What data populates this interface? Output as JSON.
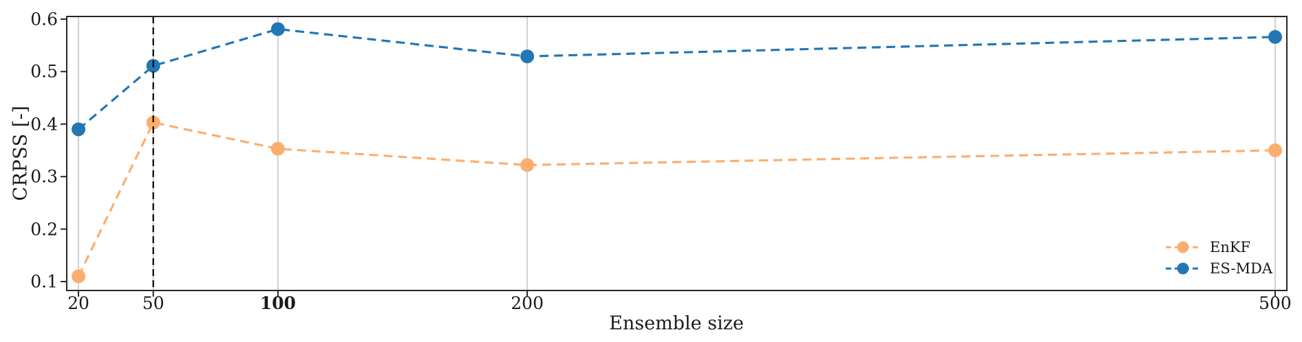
{
  "figure": {
    "background": "#ffffff"
  },
  "chart_data": {
    "type": "line",
    "title": "",
    "xlabel": "Ensemble size",
    "ylabel": "CRPSS [-]",
    "x": [
      20,
      50,
      100,
      200,
      500
    ],
    "xticks": [
      {
        "label": "20",
        "bold": false
      },
      {
        "label": "50",
        "bold": false
      },
      {
        "label": "100",
        "bold": true
      },
      {
        "label": "200",
        "bold": false
      },
      {
        "label": "500",
        "bold": false
      }
    ],
    "yticks": [
      {
        "value": 0.1,
        "label": "0.1"
      },
      {
        "value": 0.2,
        "label": "0.2"
      },
      {
        "value": 0.3,
        "label": "0.3"
      },
      {
        "value": 0.4,
        "label": "0.4"
      },
      {
        "value": 0.5,
        "label": "0.5"
      },
      {
        "value": 0.6,
        "label": "0.6"
      }
    ],
    "xlim": [
      15.3,
      504.7
    ],
    "ylim": [
      0.083,
      0.605
    ],
    "grid": {
      "axis": "x",
      "on": true
    },
    "vline": {
      "x": 50,
      "style": "dashed"
    },
    "series": [
      {
        "name": "EnKF",
        "values": [
          0.11,
          0.403,
          0.353,
          0.322,
          0.35
        ],
        "linestyle": "dashed",
        "marker": "circle"
      },
      {
        "name": "ES-MDA",
        "values": [
          0.39,
          0.511,
          0.581,
          0.529,
          0.566
        ],
        "linestyle": "dashed",
        "marker": "circle"
      }
    ],
    "legend": {
      "position": "lower right",
      "items": [
        "EnKF",
        "ES-MDA"
      ]
    }
  },
  "colors": {
    "enkf": "#fcae6e",
    "esmda": "#2277b4",
    "grid": "#cccccc",
    "vline": "#000000",
    "spine": "#262626",
    "text": "#1a1a1a"
  }
}
